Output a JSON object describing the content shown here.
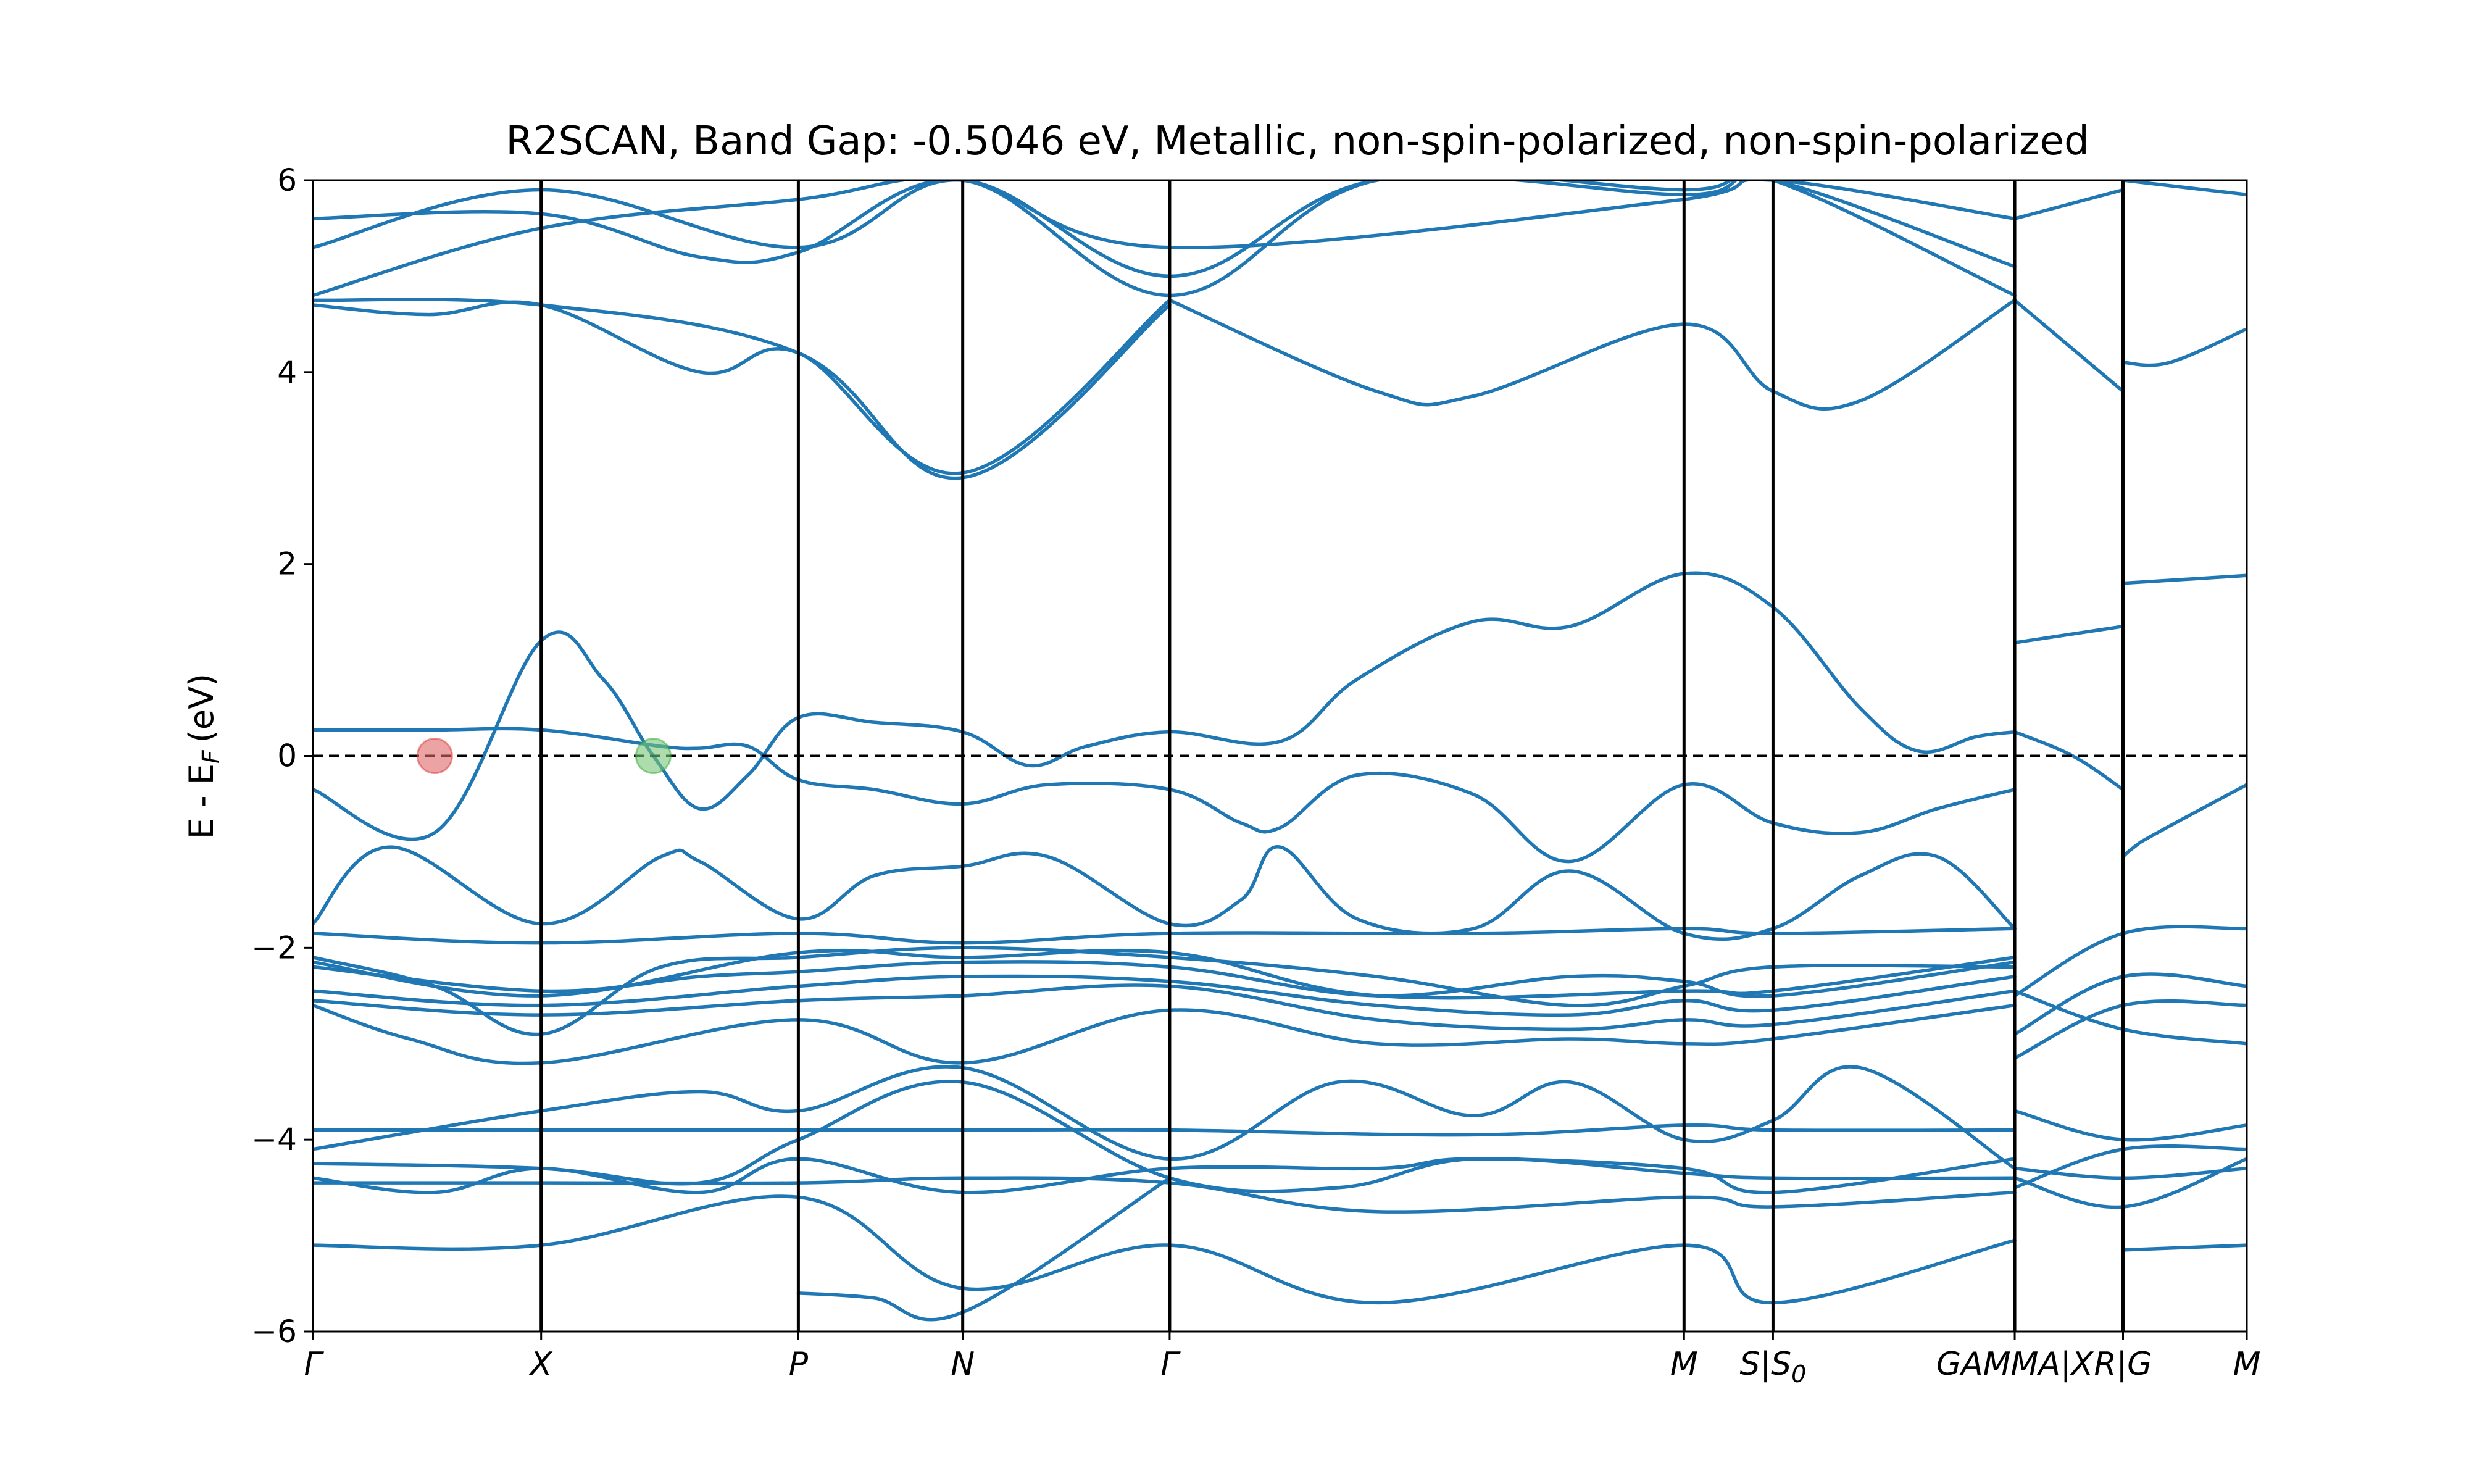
{
  "chart_data": {
    "type": "line",
    "title": "R2SCAN, Band Gap: -0.5046 eV, Metallic, non-spin-polarized, non-spin-polarized",
    "ylabel": "E - E",
    "ylabel_sub": "F",
    "ylabel_unit": "(eV)",
    "xlabel": "",
    "ylim": [
      -6,
      6
    ],
    "xlim": [
      0,
      1
    ],
    "grid": false,
    "legend": "none",
    "colors": {
      "band": "#1f77b4",
      "fermi": "#000000",
      "kpath": "#000000",
      "vbm_marker": "#e06666",
      "cbm_marker": "#77c577"
    },
    "yticks": [
      {
        "v": 6,
        "label": "6"
      },
      {
        "v": 4,
        "label": "4"
      },
      {
        "v": 2,
        "label": "2"
      },
      {
        "v": 0,
        "label": "0"
      },
      {
        "v": -2,
        "label": "−2"
      },
      {
        "v": -4,
        "label": "−4"
      },
      {
        "v": -6,
        "label": "−6"
      }
    ],
    "kpoints": [
      {
        "label": "Γ",
        "sub": "",
        "x": 0.0
      },
      {
        "label": "X",
        "sub": "",
        "x": 0.118
      },
      {
        "label": "P",
        "sub": "",
        "x": 0.251
      },
      {
        "label": "N",
        "sub": "",
        "x": 0.336
      },
      {
        "label": "Γ",
        "sub": "",
        "x": 0.443
      },
      {
        "label": "M",
        "sub": "",
        "x": 0.709
      },
      {
        "label": "S|S",
        "sub": "0",
        "x": 0.755
      },
      {
        "label": "GAMMA|X",
        "sub": "",
        "x": 0.88
      },
      {
        "label": "R|G",
        "sub": "",
        "x": 0.936
      },
      {
        "label": "M",
        "sub": "",
        "x": 1.0
      }
    ],
    "markers": [
      {
        "name": "vbm",
        "x": 0.063,
        "y": 0.0
      },
      {
        "name": "cbm",
        "x": 0.176,
        "y": 0.0
      }
    ],
    "series": [
      {
        "x": [
          0,
          0.063,
          0.118,
          0.15,
          0.176,
          0.2,
          0.225,
          0.251,
          0.29,
          0.336,
          0.37,
          0.4,
          0.443,
          0.5,
          0.54,
          0.6,
          0.65,
          0.709,
          0.755,
          0.8,
          0.83,
          0.86,
          0.88
        ],
        "y": [
          -0.35,
          -0.8,
          1.2,
          0.8,
          0.0,
          -0.55,
          -0.2,
          0.4,
          0.35,
          0.25,
          -0.1,
          0.1,
          0.25,
          0.15,
          0.8,
          1.4,
          1.35,
          1.9,
          1.55,
          0.5,
          0.05,
          0.2,
          0.25
        ]
      },
      {
        "x": [
          0,
          0.06,
          0.118,
          0.18,
          0.2,
          0.225,
          0.251,
          0.29,
          0.336,
          0.38,
          0.443,
          0.48,
          0.5,
          0.54,
          0.6,
          0.65,
          0.709,
          0.755,
          0.8,
          0.84,
          0.88
        ],
        "y": [
          0.27,
          0.27,
          0.27,
          0.1,
          0.08,
          0.1,
          -0.25,
          -0.35,
          -0.5,
          -0.3,
          -0.35,
          -0.7,
          -0.75,
          -0.2,
          -0.4,
          -1.1,
          -0.3,
          -0.7,
          -0.8,
          -0.55,
          -0.35
        ]
      },
      {
        "x": [
          0.88,
          0.91,
          0.936
        ],
        "y": [
          0.25,
          0.0,
          -0.35
        ]
      },
      {
        "x": [
          0.936,
          0.945,
          1.0
        ],
        "y": [
          -1.05,
          -0.9,
          -0.3
        ]
      },
      {
        "x": [
          0.88,
          0.936
        ],
        "y": [
          1.18,
          1.35
        ]
      },
      {
        "x": [
          0.936,
          1.0
        ],
        "y": [
          1.8,
          1.88
        ]
      },
      {
        "x": [
          0,
          0.04,
          0.118,
          0.18,
          0.2,
          0.251,
          0.29,
          0.336,
          0.38,
          0.443,
          0.48,
          0.5,
          0.54,
          0.6,
          0.65,
          0.709,
          0.755,
          0.8,
          0.84,
          0.88
        ],
        "y": [
          -1.75,
          -0.95,
          -1.75,
          -1.05,
          -1.1,
          -1.7,
          -1.25,
          -1.15,
          -1.05,
          -1.75,
          -1.5,
          -0.95,
          -1.7,
          -1.8,
          -1.2,
          -1.85,
          -1.8,
          -1.25,
          -1.05,
          -1.8
        ]
      },
      {
        "x": [
          0,
          0.118,
          0.251,
          0.336,
          0.443,
          0.6,
          0.709,
          0.755,
          0.88
        ],
        "y": [
          -1.85,
          -1.95,
          -1.85,
          -1.95,
          -1.85,
          -1.85,
          -1.8,
          -1.85,
          -1.8
        ]
      },
      {
        "x": [
          0,
          0.063,
          0.118,
          0.18,
          0.251,
          0.336,
          0.443,
          0.55,
          0.65,
          0.709,
          0.755,
          0.88
        ],
        "y": [
          -2.1,
          -2.4,
          -2.9,
          -2.2,
          -2.1,
          -2.0,
          -2.1,
          -2.3,
          -2.6,
          -2.4,
          -2.2,
          -2.2
        ]
      },
      {
        "x": [
          0,
          0.118,
          0.2,
          0.251,
          0.336,
          0.443,
          0.55,
          0.65,
          0.709,
          0.755,
          0.88
        ],
        "y": [
          -2.2,
          -2.45,
          -2.3,
          -2.25,
          -2.15,
          -2.2,
          -2.5,
          -2.3,
          -2.35,
          -2.5,
          -2.15
        ]
      },
      {
        "x": [
          0,
          0.118,
          0.251,
          0.336,
          0.443,
          0.55,
          0.65,
          0.709,
          0.755,
          0.88
        ],
        "y": [
          -2.45,
          -2.6,
          -2.4,
          -2.3,
          -2.35,
          -2.6,
          -2.7,
          -2.55,
          -2.65,
          -2.3
        ]
      },
      {
        "x": [
          0,
          0.118,
          0.251,
          0.336,
          0.443,
          0.55,
          0.65,
          0.709,
          0.755,
          0.88
        ],
        "y": [
          -2.55,
          -2.7,
          -2.55,
          -2.5,
          -2.4,
          -2.75,
          -2.85,
          -2.75,
          -2.8,
          -2.45
        ]
      },
      {
        "x": [
          0,
          0.05,
          0.118,
          0.251,
          0.336,
          0.443,
          0.55,
          0.65,
          0.709,
          0.755,
          0.88
        ],
        "y": [
          -2.6,
          -2.95,
          -3.2,
          -2.75,
          -3.2,
          -2.65,
          -3.0,
          -2.95,
          -3.0,
          -2.95,
          -2.6
        ]
      },
      {
        "x": [
          0,
          0.118,
          0.251,
          0.336,
          0.443,
          0.55,
          0.709,
          0.755,
          0.88
        ],
        "y": [
          -2.15,
          -2.5,
          -2.05,
          -2.1,
          -2.05,
          -2.5,
          -2.45,
          -2.45,
          -2.1
        ]
      },
      {
        "x": [
          0.88,
          0.936,
          1.0
        ],
        "y": [
          -2.5,
          -1.85,
          -1.8
        ]
      },
      {
        "x": [
          0.88,
          0.936,
          1.0
        ],
        "y": [
          -2.9,
          -2.3,
          -2.4
        ]
      },
      {
        "x": [
          0.88,
          0.936,
          1.0
        ],
        "y": [
          -3.15,
          -2.6,
          -2.6
        ]
      },
      {
        "x": [
          0.88,
          0.936,
          1.0
        ],
        "y": [
          -2.45,
          -2.85,
          -3.0
        ]
      },
      {
        "x": [
          0,
          0.118,
          0.251,
          0.336,
          0.443,
          0.6,
          0.709,
          0.755,
          0.88
        ],
        "y": [
          -3.9,
          -3.9,
          -3.9,
          -3.9,
          -3.9,
          -3.95,
          -3.85,
          -3.9,
          -3.9
        ]
      },
      {
        "x": [
          0,
          0.118,
          0.2,
          0.251,
          0.336,
          0.443,
          0.53,
          0.6,
          0.65,
          0.709,
          0.755,
          0.8,
          0.88
        ],
        "y": [
          -4.1,
          -3.7,
          -3.5,
          -3.7,
          -3.25,
          -4.2,
          -3.4,
          -3.75,
          -3.4,
          -4.0,
          -3.8,
          -3.25,
          -4.3
        ]
      },
      {
        "x": [
          0,
          0.118,
          0.2,
          0.251,
          0.336,
          0.443,
          0.53,
          0.6,
          0.709,
          0.755,
          0.88
        ],
        "y": [
          -4.25,
          -4.3,
          -4.45,
          -4.0,
          -3.4,
          -4.4,
          -4.5,
          -4.2,
          -4.35,
          -4.4,
          -4.4
        ]
      },
      {
        "x": [
          0,
          0.063,
          0.118,
          0.2,
          0.251,
          0.336,
          0.443,
          0.55,
          0.6,
          0.709,
          0.755,
          0.88
        ],
        "y": [
          -4.4,
          -4.55,
          -4.3,
          -4.55,
          -4.2,
          -4.55,
          -4.3,
          -4.3,
          -4.2,
          -4.3,
          -4.55,
          -4.2
        ]
      },
      {
        "x": [
          0,
          0.118,
          0.251,
          0.336,
          0.443,
          0.55,
          0.709,
          0.755,
          0.88
        ],
        "y": [
          -4.45,
          -4.45,
          -4.45,
          -4.4,
          -4.45,
          -4.75,
          -4.6,
          -4.7,
          -4.55
        ]
      },
      {
        "x": [
          0,
          0.118,
          0.251,
          0.336,
          0.443,
          0.55,
          0.709,
          0.755,
          0.88
        ],
        "y": [
          -5.1,
          -5.1,
          -4.6,
          -5.55,
          -5.1,
          -5.7,
          -5.1,
          -5.7,
          -5.05
        ]
      },
      {
        "x": [
          0.251,
          0.29,
          0.336,
          0.443
        ],
        "y": [
          -5.6,
          -5.65,
          -5.8,
          -4.4
        ]
      },
      {
        "x": [
          0.88,
          0.936,
          1.0
        ],
        "y": [
          -3.7,
          -4.0,
          -3.85
        ]
      },
      {
        "x": [
          0.88,
          0.936,
          1.0
        ],
        "y": [
          -4.5,
          -4.1,
          -4.1
        ]
      },
      {
        "x": [
          0.88,
          0.936,
          1.0
        ],
        "y": [
          -4.3,
          -4.4,
          -4.3
        ]
      },
      {
        "x": [
          0.88,
          0.936,
          1.0
        ],
        "y": [
          -4.4,
          -4.7,
          -4.2
        ]
      },
      {
        "x": [
          0.936,
          1.0
        ],
        "y": [
          -5.15,
          -5.1
        ]
      },
      {
        "x": [
          0,
          0.118,
          0.251,
          0.336,
          0.443
        ],
        "y": [
          4.75,
          4.7,
          4.2,
          2.9,
          4.7
        ]
      },
      {
        "x": [
          0,
          0.06,
          0.118,
          0.2,
          0.251,
          0.336,
          0.443
        ],
        "y": [
          4.7,
          4.6,
          4.7,
          4.0,
          4.2,
          2.95,
          4.75
        ]
      },
      {
        "x": [
          0.443,
          0.55,
          0.6,
          0.709,
          0.755,
          0.8,
          0.88
        ],
        "y": [
          4.75,
          3.8,
          3.75,
          4.5,
          3.8,
          3.7,
          4.75
        ]
      },
      {
        "x": [
          0.88,
          0.936
        ],
        "y": [
          4.75,
          3.8
        ]
      },
      {
        "x": [
          0.936,
          0.96,
          1.0
        ],
        "y": [
          4.1,
          4.1,
          4.45
        ]
      },
      {
        "x": [
          0,
          0.118,
          0.2,
          0.251,
          0.336,
          0.443,
          0.55,
          0.709,
          0.755,
          0.88
        ],
        "y": [
          5.6,
          5.65,
          5.2,
          5.25,
          6.0,
          4.8,
          6.0,
          5.9,
          6.0,
          4.8
        ]
      },
      {
        "x": [
          0,
          0.118,
          0.251,
          0.336,
          0.443,
          0.55,
          0.709,
          0.755,
          0.88
        ],
        "y": [
          5.3,
          5.9,
          5.3,
          6.0,
          5.0,
          6.0,
          5.85,
          6.0,
          5.1
        ]
      },
      {
        "x": [
          0,
          0.118,
          0.251,
          0.336,
          0.443,
          0.709,
          0.755,
          0.88
        ],
        "y": [
          4.8,
          5.5,
          5.8,
          6.0,
          5.3,
          5.8,
          6.0,
          5.6
        ]
      },
      {
        "x": [
          0.88,
          0.936
        ],
        "y": [
          5.6,
          5.9
        ]
      },
      {
        "x": [
          0.936,
          1.0
        ],
        "y": [
          6.0,
          5.85
        ]
      }
    ]
  }
}
